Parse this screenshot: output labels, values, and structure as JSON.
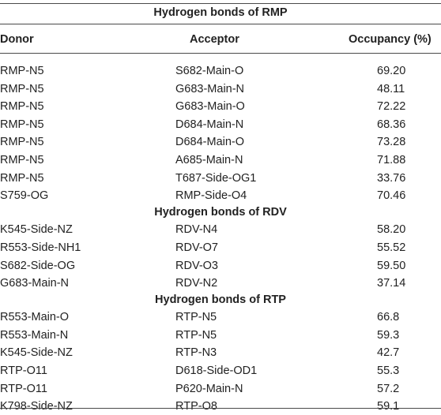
{
  "table": {
    "title": "Hydrogen bonds of RMP",
    "headers": {
      "donor": "Donor",
      "acceptor": "Acceptor",
      "occupancy": "Occupancy (%)"
    },
    "sections": [
      {
        "title": "Hydrogen bonds of RMP",
        "rows": [
          {
            "donor": "RMP-N5",
            "acceptor": "S682-Main-O",
            "occupancy": "69.20"
          },
          {
            "donor": "RMP-N5",
            "acceptor": "G683-Main-N",
            "occupancy": "48.11"
          },
          {
            "donor": "RMP-N5",
            "acceptor": "G683-Main-O",
            "occupancy": "72.22"
          },
          {
            "donor": "RMP-N5",
            "acceptor": "D684-Main-N",
            "occupancy": "68.36"
          },
          {
            "donor": "RMP-N5",
            "acceptor": "D684-Main-O",
            "occupancy": "73.28"
          },
          {
            "donor": "RMP-N5",
            "acceptor": "A685-Main-N",
            "occupancy": "71.88"
          },
          {
            "donor": "RMP-N5",
            "acceptor": "T687-Side-OG1",
            "occupancy": "33.76"
          },
          {
            "donor": "S759-OG",
            "acceptor": "RMP-Side-O4",
            "occupancy": "70.46"
          }
        ]
      },
      {
        "title": "Hydrogen bonds of RDV",
        "rows": [
          {
            "donor": "K545-Side-NZ",
            "acceptor": "RDV-N4",
            "occupancy": "58.20"
          },
          {
            "donor": "R553-Side-NH1",
            "acceptor": "RDV-O7",
            "occupancy": "55.52"
          },
          {
            "donor": "S682-Side-OG",
            "acceptor": "RDV-O3",
            "occupancy": "59.50"
          },
          {
            "donor": "G683-Main-N",
            "acceptor": "RDV-N2",
            "occupancy": "37.14"
          }
        ]
      },
      {
        "title": "Hydrogen bonds of RTP",
        "rows": [
          {
            "donor": "R553-Main-O",
            "acceptor": "RTP-N5",
            "occupancy": "66.8"
          },
          {
            "donor": "R553-Main-N",
            "acceptor": "RTP-N5",
            "occupancy": "59.3"
          },
          {
            "donor": "K545-Side-NZ",
            "acceptor": "RTP-N3",
            "occupancy": "42.7"
          },
          {
            "donor": "RTP-O11",
            "acceptor": "D618-Side-OD1",
            "occupancy": "55.3"
          },
          {
            "donor": "RTP-O11",
            "acceptor": "P620-Main-N",
            "occupancy": "57.2"
          },
          {
            "donor": "K798-Side-NZ",
            "acceptor": "RTP-O8",
            "occupancy": "59.1"
          }
        ]
      }
    ]
  }
}
